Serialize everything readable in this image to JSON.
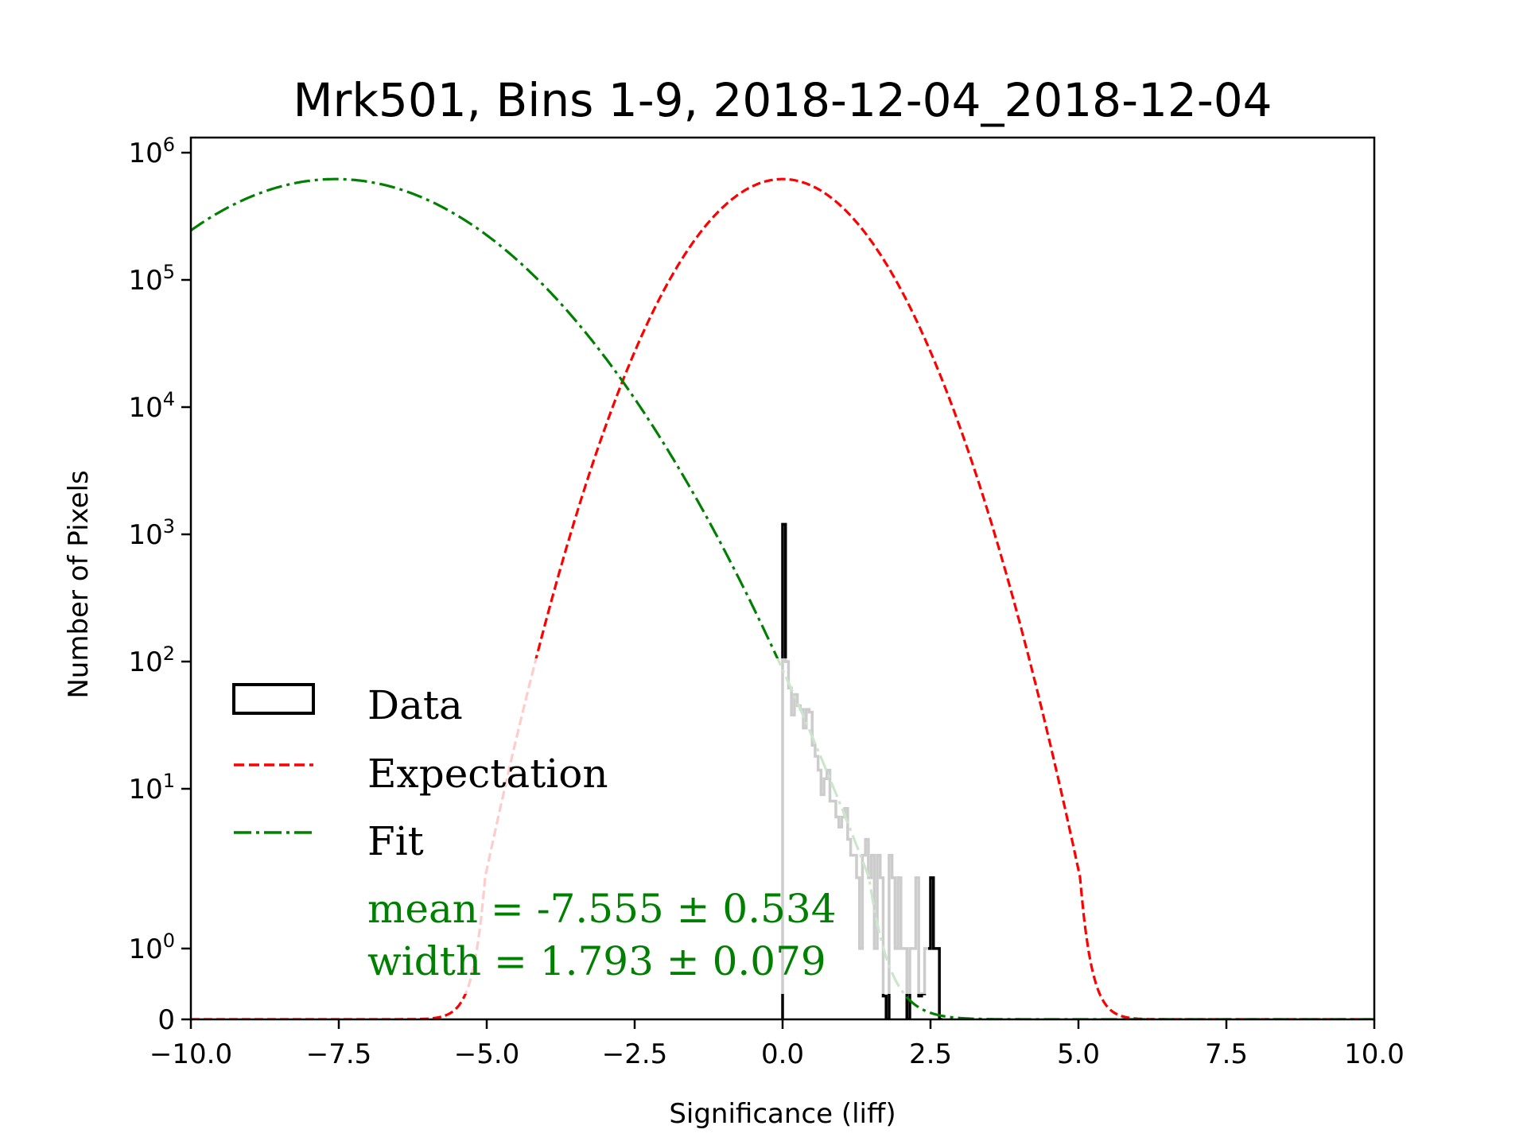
{
  "chart_data": {
    "type": "histogram",
    "title": "Mrk501, Bins 1-9, 2018-12-04_2018-12-04",
    "xlabel": "Significance (liff)",
    "ylabel": "Number of Pixels",
    "xlim": [
      -10.0,
      10.0
    ],
    "ylim": [
      0,
      1000000
    ],
    "yscale": "symlog",
    "yscale_linthresh": 2,
    "x_ticks": [
      -10.0,
      -7.5,
      -5.0,
      -2.5,
      0.0,
      2.5,
      5.0,
      7.5,
      10.0
    ],
    "x_tick_labels": [
      "−10.0",
      "−7.5",
      "−5.0",
      "−2.5",
      "0.0",
      "2.5",
      "5.0",
      "7.5",
      "10.0"
    ],
    "y_ticks": [
      0,
      1,
      10,
      100,
      1000,
      10000,
      100000,
      1000000
    ],
    "y_tick_labels": [
      {
        "base": "0",
        "exp": ""
      },
      {
        "base": "10",
        "exp": "0"
      },
      {
        "base": "10",
        "exp": "1"
      },
      {
        "base": "10",
        "exp": "2"
      },
      {
        "base": "10",
        "exp": "3"
      },
      {
        "base": "10",
        "exp": "4"
      },
      {
        "base": "10",
        "exp": "5"
      },
      {
        "base": "10",
        "exp": "6"
      }
    ],
    "grid": false,
    "legend_position": "lower-left",
    "legend": [
      {
        "label": "Data",
        "style": "patch",
        "color": "#000000"
      },
      {
        "label": "Expectation",
        "style": "dashed",
        "color": "#ff0000"
      },
      {
        "label": "Fit",
        "style": "dashdot",
        "color": "#008000"
      }
    ],
    "annotations": [
      {
        "text": "mean = -7.555 ± 0.534",
        "color": "#008000"
      },
      {
        "text": "width = 1.793 ± 0.079",
        "color": "#008000"
      }
    ],
    "series": [
      {
        "name": "Data",
        "kind": "step-histogram",
        "color": "#000000",
        "bin_width": 0.05,
        "bin_start": 0.0,
        "values": [
          1200,
          100,
          62,
          38,
          55,
          45,
          42,
          30,
          42,
          40,
          22,
          18,
          14,
          9,
          12,
          14,
          8,
          8,
          6,
          5,
          6,
          7,
          4,
          3,
          3,
          2,
          1,
          3,
          4,
          2,
          3,
          1,
          3,
          2,
          0.33,
          0,
          3,
          2,
          1,
          2,
          1,
          1,
          0,
          1,
          1,
          2,
          0.33,
          0.36,
          1,
          1,
          2,
          1,
          1,
          0
        ]
      },
      {
        "name": "Expectation",
        "kind": "gaussian",
        "color": "#ff0000",
        "amplitude": 620000,
        "mean": 0.0,
        "width": 1.0
      },
      {
        "name": "Fit",
        "kind": "gaussian",
        "color": "#008000",
        "amplitude": 620000,
        "mean": -7.555,
        "width": 1.793
      }
    ]
  }
}
